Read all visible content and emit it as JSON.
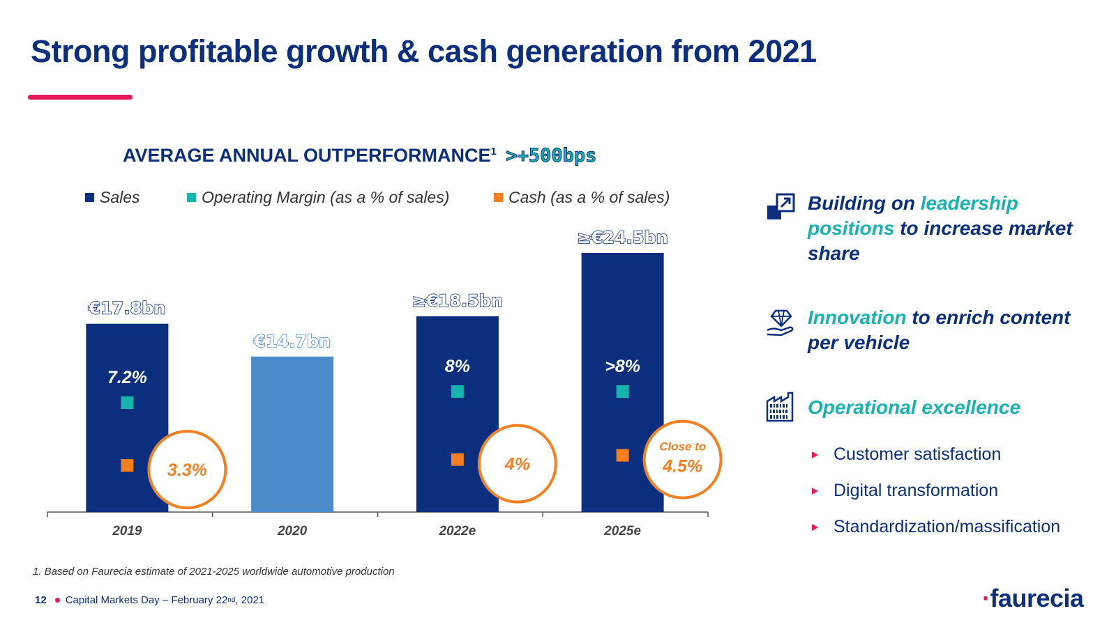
{
  "title": "Strong profitable growth & cash generation from 2021",
  "chart_heading": {
    "text": "AVERAGE ANNUAL OUTPERFORMANCE",
    "sup": "1",
    "highlight": ">+500bps"
  },
  "legend": [
    {
      "label": "Sales",
      "color": "#0b2f7e"
    },
    {
      "label": "Operating Margin (as a % of sales)",
      "color": "#17b3ad"
    },
    {
      "label": "Cash (as a % of sales)",
      "color": "#f47f20"
    }
  ],
  "chart_data": {
    "type": "bar",
    "categories": [
      "2019",
      "2020",
      "2022e",
      "2025e"
    ],
    "series": [
      {
        "name": "Sales",
        "unit": "€bn",
        "values": [
          17.8,
          14.7,
          18.5,
          24.5
        ],
        "labels": [
          "€17.8bn",
          "€14.7bn",
          "≥€18.5bn",
          "≥€24.5bn"
        ],
        "bar_colors": [
          "#0b2f7e",
          "#4a8bc9",
          "#0b2f7e",
          "#0b2f7e"
        ]
      },
      {
        "name": "Operating Margin (as a % of sales)",
        "unit": "%",
        "values": [
          7.2,
          null,
          8,
          8
        ],
        "labels": [
          "7.2%",
          "",
          "8%",
          ">8%"
        ]
      },
      {
        "name": "Cash (as a % of sales)",
        "unit": "%",
        "values": [
          3.3,
          null,
          4,
          4.5
        ],
        "labels": [
          "3.3%",
          "",
          "4%",
          "4.5%"
        ],
        "label_prefix": [
          "",
          "",
          "",
          "Close to"
        ]
      }
    ],
    "ylim": [
      0,
      25
    ],
    "grid": false
  },
  "right_panel": {
    "items": [
      {
        "icon": "share-growth-icon",
        "pre": "Building on ",
        "accent": "leadership positions",
        "post": " to increase market share"
      },
      {
        "icon": "hand-diamond-icon",
        "pre": "",
        "accent": "Innovation",
        "post": " to enrich content per vehicle"
      },
      {
        "icon": "digital-factory-icon",
        "pre": "",
        "accent": "Operational excellence",
        "post": ""
      }
    ],
    "bullets": [
      "Customer satisfaction",
      "Digital transformation",
      "Standardization/massification"
    ]
  },
  "footnote": "1. Based on Faurecia estimate of 2021-2025 worldwide automotive production",
  "footer": {
    "page": "12",
    "text": "Capital Markets Day – February 22",
    "sup": "nd",
    "tail": ", 2021"
  },
  "logo": {
    "text": "faurecia"
  },
  "colors": {
    "navy": "#0b2f7e",
    "teal": "#17b3ad",
    "orange": "#f47f20",
    "pink": "#e8195a",
    "light_blue": "#4a8bc9"
  }
}
